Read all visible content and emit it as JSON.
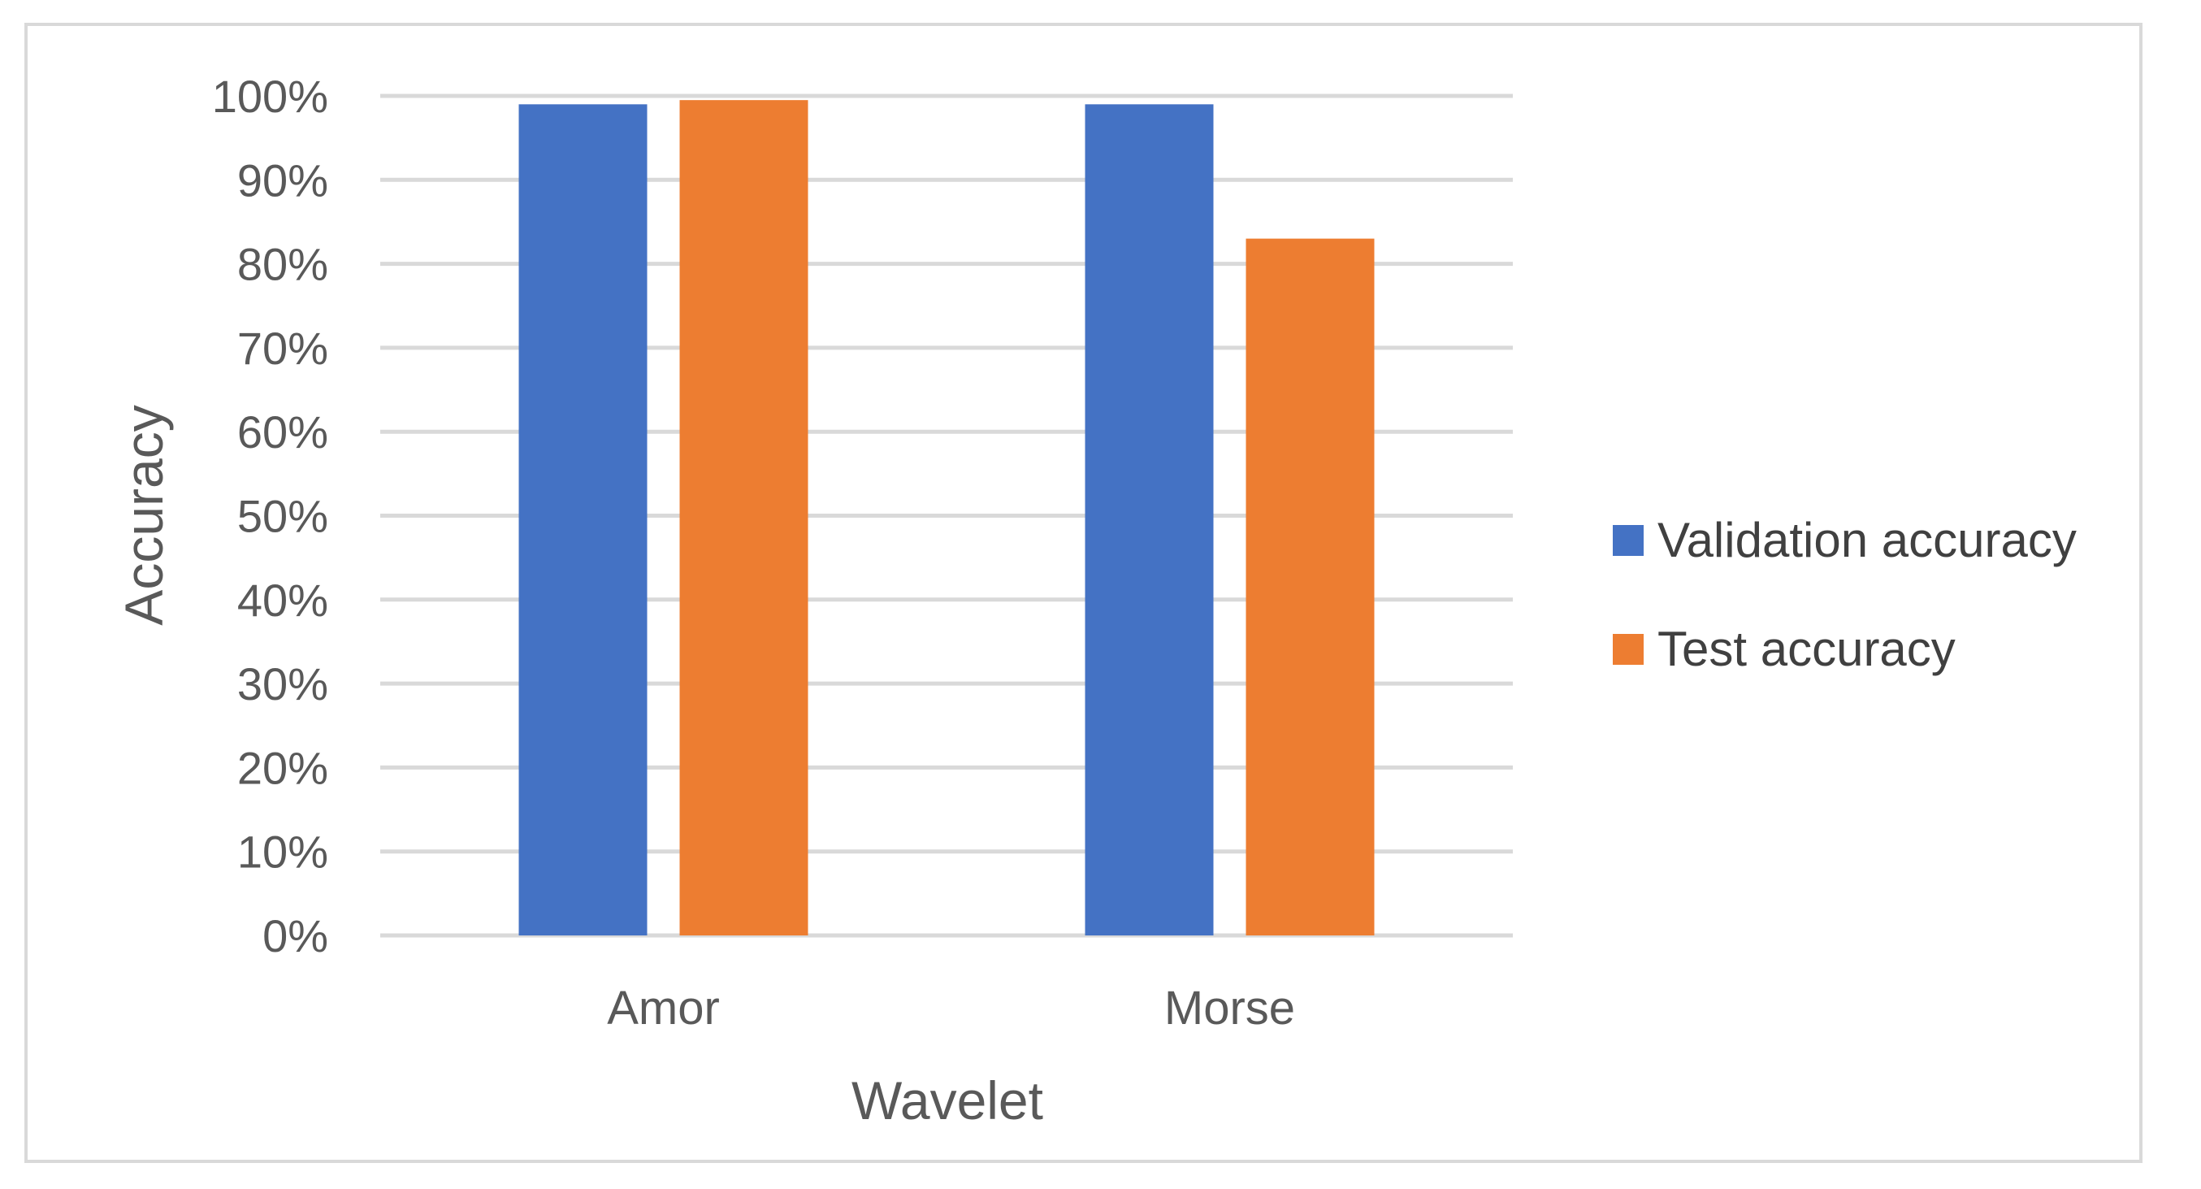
{
  "chart_data": {
    "type": "bar",
    "categories": [
      "Amor",
      "Morse"
    ],
    "series": [
      {
        "name": "Validation accuracy",
        "values": [
          99,
          99
        ],
        "color": "#4472C4"
      },
      {
        "name": "Test accuracy",
        "values": [
          99.5,
          83
        ],
        "color": "#ED7D31"
      }
    ],
    "xlabel": "Wavelet",
    "ylabel": "Accuracy",
    "ylim": [
      0,
      100
    ],
    "yticks": [
      0,
      10,
      20,
      30,
      40,
      50,
      60,
      70,
      80,
      90,
      100
    ],
    "ytick_labels": [
      "0%",
      "10%",
      "20%",
      "30%",
      "40%",
      "50%",
      "60%",
      "70%",
      "80%",
      "90%",
      "100%"
    ],
    "grid": true,
    "legend_position": "right"
  }
}
